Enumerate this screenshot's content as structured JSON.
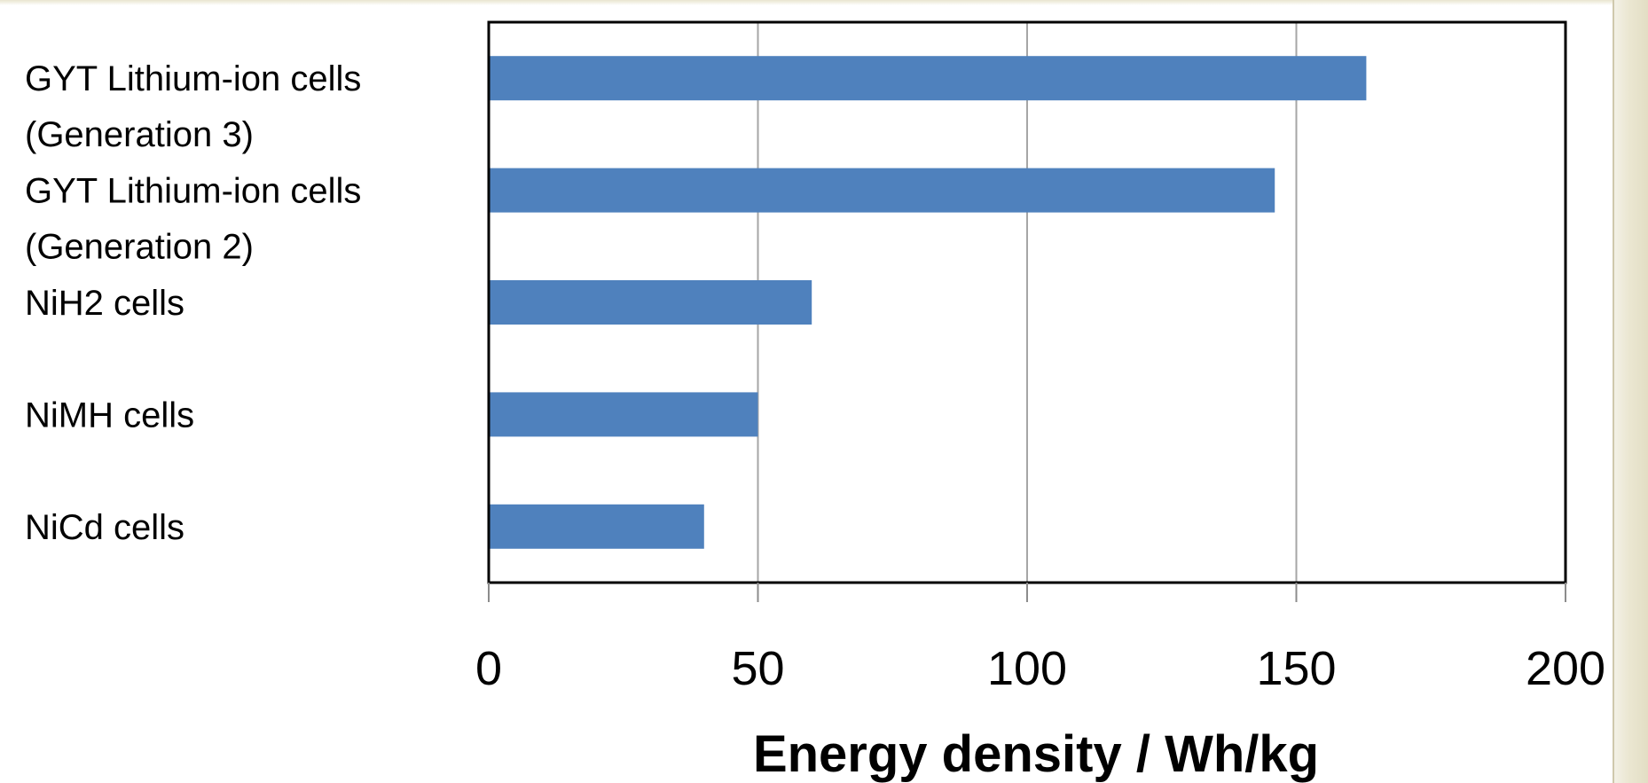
{
  "chart_data": {
    "type": "bar",
    "orientation": "horizontal",
    "categories": [
      [
        "GYT Lithium-ion cells",
        "(Generation 3)"
      ],
      [
        "GYT Lithium-ion cells",
        "(Generation 2)"
      ],
      [
        "NiH2 cells"
      ],
      [
        "NiMH cells"
      ],
      [
        "NiCd cells"
      ]
    ],
    "values": [
      163,
      146,
      60,
      50,
      40
    ],
    "xlabel": "Energy density / Wh/kg",
    "xlim": [
      0,
      200
    ],
    "xticks": [
      0,
      50,
      100,
      150,
      200
    ],
    "bar_color": "#4f81bd",
    "grid": "vertical",
    "legend": "none"
  }
}
